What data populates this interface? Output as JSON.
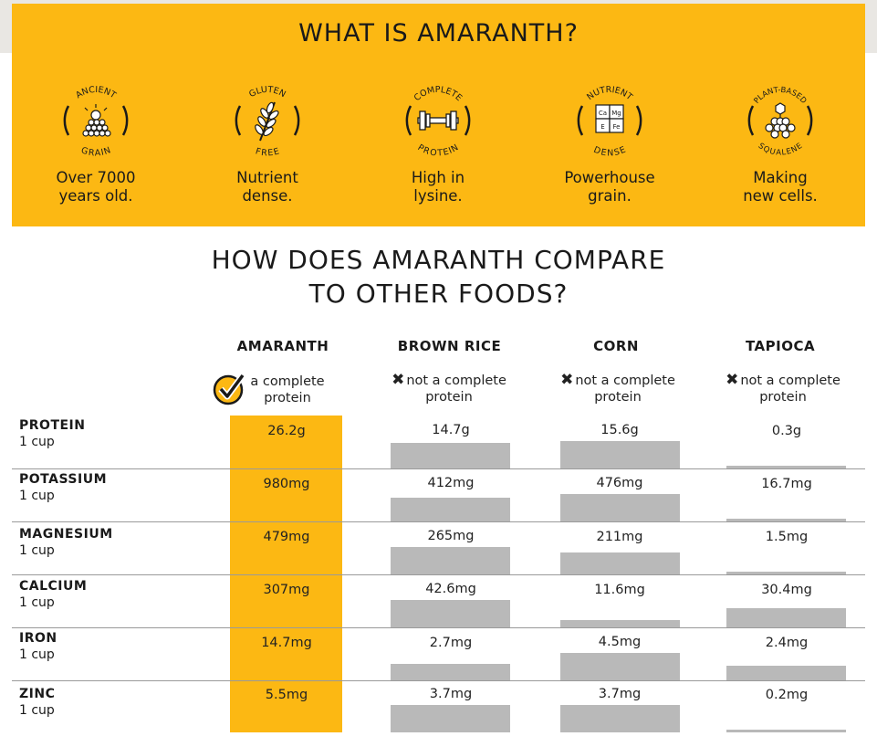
{
  "banner": {
    "title": "WHAT IS AMARANTH?",
    "background_color": "#fcb813",
    "features": [
      {
        "badge_top": "ANCIENT",
        "badge_bottom": "GRAIN",
        "icon": "bulb-grain-icon",
        "caption_line1": "Over 7000",
        "caption_line2": "years old."
      },
      {
        "badge_top": "GLUTEN",
        "badge_bottom": "FREE",
        "icon": "wheat-icon",
        "caption_line1": "Nutrient",
        "caption_line2": "dense."
      },
      {
        "badge_top": "COMPLETE",
        "badge_bottom": "PROTEIN",
        "icon": "barbell-icon",
        "caption_line1": "High in",
        "caption_line2": "lysine."
      },
      {
        "badge_top": "NUTRIENT",
        "badge_bottom": "DENSE",
        "icon": "puzzle-icon",
        "puzzle_labels": [
          "Ca",
          "Mg",
          "E",
          "Fe"
        ],
        "caption_line1": "Powerhouse",
        "caption_line2": "grain."
      },
      {
        "badge_top": "PLANT-BASED",
        "badge_bottom": "SQUALENE",
        "icon": "molecule-icon",
        "caption_line1": "Making",
        "caption_line2": "new cells."
      }
    ]
  },
  "comparison": {
    "title_line1": "HOW DOES AMARANTH COMPARE",
    "title_line2": "TO OTHER FOODS?",
    "bar_color": "#b9b9b9",
    "highlight_color": "#fcb813",
    "columns": [
      {
        "name": "AMARANTH",
        "status_line1": "a complete",
        "status_line2": "protein",
        "status_icon": "check-icon"
      },
      {
        "name": "BROWN RICE",
        "status_line1": "not a complete",
        "status_line2": "protein",
        "status_icon": "x-icon"
      },
      {
        "name": "CORN",
        "status_line1": "not a complete",
        "status_line2": "protein",
        "status_icon": "x-icon"
      },
      {
        "name": "TAPIOCA",
        "status_line1": "not a complete",
        "status_line2": "protein",
        "status_icon": "x-icon"
      }
    ],
    "rows": [
      {
        "nutrient": "PROTEIN",
        "unit": "1 cup",
        "values": [
          "26.2g",
          "14.7g",
          "15.6g",
          "0.3g"
        ],
        "amounts": [
          26.2,
          14.7,
          15.6,
          0.3
        ]
      },
      {
        "nutrient": "POTASSIUM",
        "unit": "1 cup",
        "values": [
          "980mg",
          "412mg",
          "476mg",
          "16.7mg"
        ],
        "amounts": [
          980,
          412,
          476,
          16.7
        ]
      },
      {
        "nutrient": "MAGNESIUM",
        "unit": "1 cup",
        "values": [
          "479mg",
          "265mg",
          "211mg",
          "1.5mg"
        ],
        "amounts": [
          479,
          265,
          211,
          1.5
        ]
      },
      {
        "nutrient": "CALCIUM",
        "unit": "1 cup",
        "values": [
          "307mg",
          "42.6mg",
          "11.6mg",
          "30.4mg"
        ],
        "amounts": [
          307,
          42.6,
          11.6,
          30.4
        ]
      },
      {
        "nutrient": "IRON",
        "unit": "1 cup",
        "values": [
          "14.7mg",
          "2.7mg",
          "4.5mg",
          "2.4mg"
        ],
        "amounts": [
          14.7,
          2.7,
          4.5,
          2.4
        ]
      },
      {
        "nutrient": "ZINC",
        "unit": "1 cup",
        "values": [
          "5.5mg",
          "3.7mg",
          "3.7mg",
          "0.2mg"
        ],
        "amounts": [
          5.5,
          3.7,
          3.7,
          0.2
        ]
      }
    ]
  }
}
